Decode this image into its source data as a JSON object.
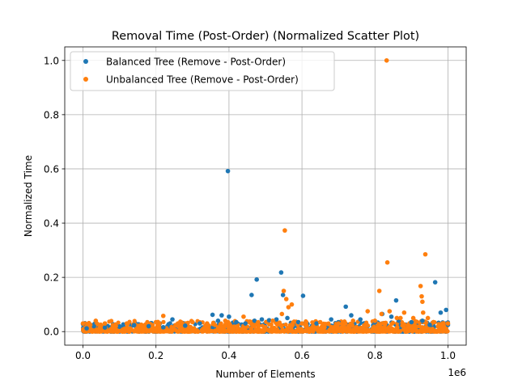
{
  "chart_data": {
    "type": "scatter",
    "title": "Removal Time (Post-Order) (Normalized Scatter Plot)",
    "xlabel": "Number of Elements",
    "ylabel": "Normalized Time",
    "x_offset_label": "1e6",
    "xlim": [
      -50000,
      1050000
    ],
    "ylim": [
      -0.05,
      1.05
    ],
    "xticks": [
      {
        "value": 0,
        "label": "0.0"
      },
      {
        "value": 200000,
        "label": "0.2"
      },
      {
        "value": 400000,
        "label": "0.4"
      },
      {
        "value": 600000,
        "label": "0.6"
      },
      {
        "value": 800000,
        "label": "0.8"
      },
      {
        "value": 1000000,
        "label": "1.0"
      }
    ],
    "yticks": [
      {
        "value": 0.0,
        "label": "0.0"
      },
      {
        "value": 0.2,
        "label": "0.2"
      },
      {
        "value": 0.4,
        "label": "0.4"
      },
      {
        "value": 0.6,
        "label": "0.6"
      },
      {
        "value": 0.8,
        "label": "0.8"
      },
      {
        "value": 1.0,
        "label": "1.0"
      }
    ],
    "grid": true,
    "legend_position": "top-left",
    "series": [
      {
        "name": "Balanced Tree (Remove - Post-Order)",
        "color": "#1f77b4",
        "points": [
          [
            0,
            0.028
          ],
          [
            10000,
            0.012
          ],
          [
            30000,
            0.02
          ],
          [
            60000,
            0.015
          ],
          [
            100000,
            0.018
          ],
          [
            140000,
            0.024
          ],
          [
            180000,
            0.02
          ],
          [
            220000,
            0.016
          ],
          [
            245000,
            0.045
          ],
          [
            280000,
            0.022
          ],
          [
            320000,
            0.03
          ],
          [
            355000,
            0.062
          ],
          [
            370000,
            0.04
          ],
          [
            380000,
            0.06
          ],
          [
            397000,
            0.592
          ],
          [
            400000,
            0.055
          ],
          [
            420000,
            0.035
          ],
          [
            445000,
            0.03
          ],
          [
            462000,
            0.135
          ],
          [
            470000,
            0.04
          ],
          [
            476000,
            0.192
          ],
          [
            490000,
            0.045
          ],
          [
            510000,
            0.042
          ],
          [
            530000,
            0.045
          ],
          [
            543000,
            0.218
          ],
          [
            548000,
            0.135
          ],
          [
            560000,
            0.05
          ],
          [
            590000,
            0.035
          ],
          [
            603000,
            0.132
          ],
          [
            640000,
            0.03
          ],
          [
            680000,
            0.045
          ],
          [
            700000,
            0.035
          ],
          [
            720000,
            0.092
          ],
          [
            735000,
            0.06
          ],
          [
            760000,
            0.045
          ],
          [
            800000,
            0.035
          ],
          [
            820000,
            0.065
          ],
          [
            845000,
            0.055
          ],
          [
            858000,
            0.115
          ],
          [
            865000,
            0.04
          ],
          [
            900000,
            0.035
          ],
          [
            930000,
            0.04
          ],
          [
            950000,
            0.025
          ],
          [
            965000,
            0.182
          ],
          [
            980000,
            0.07
          ],
          [
            995000,
            0.08
          ],
          [
            1000000,
            0.025
          ]
        ]
      },
      {
        "name": "Unbalanced Tree (Remove - Post-Order)",
        "color": "#ff7f0e",
        "points": [
          [
            0,
            0.03
          ],
          [
            20000,
            0.025
          ],
          [
            35000,
            0.04
          ],
          [
            60000,
            0.03
          ],
          [
            90000,
            0.02
          ],
          [
            120000,
            0.03
          ],
          [
            160000,
            0.025
          ],
          [
            200000,
            0.035
          ],
          [
            220000,
            0.058
          ],
          [
            260000,
            0.03
          ],
          [
            300000,
            0.035
          ],
          [
            340000,
            0.03
          ],
          [
            390000,
            0.04
          ],
          [
            440000,
            0.055
          ],
          [
            480000,
            0.035
          ],
          [
            520000,
            0.04
          ],
          [
            545000,
            0.065
          ],
          [
            550000,
            0.15
          ],
          [
            553000,
            0.373
          ],
          [
            557000,
            0.12
          ],
          [
            563000,
            0.09
          ],
          [
            572000,
            0.1
          ],
          [
            600000,
            0.03
          ],
          [
            650000,
            0.035
          ],
          [
            700000,
            0.03
          ],
          [
            740000,
            0.04
          ],
          [
            780000,
            0.075
          ],
          [
            800000,
            0.04
          ],
          [
            812000,
            0.15
          ],
          [
            818000,
            0.065
          ],
          [
            832000,
            1.0
          ],
          [
            834000,
            0.255
          ],
          [
            840000,
            0.075
          ],
          [
            860000,
            0.05
          ],
          [
            870000,
            0.05
          ],
          [
            880000,
            0.07
          ],
          [
            905000,
            0.05
          ],
          [
            925000,
            0.168
          ],
          [
            928000,
            0.13
          ],
          [
            930000,
            0.11
          ],
          [
            932000,
            0.07
          ],
          [
            938000,
            0.285
          ],
          [
            945000,
            0.05
          ],
          [
            960000,
            0.035
          ],
          [
            985000,
            0.03
          ],
          [
            1000000,
            0.03
          ]
        ]
      }
    ]
  }
}
